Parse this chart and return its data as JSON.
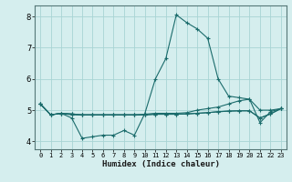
{
  "title": "",
  "xlabel": "Humidex (Indice chaleur)",
  "ylabel": "",
  "bg_color": "#d5eeee",
  "grid_color": "#a8d4d4",
  "line_color": "#1a6b6b",
  "xlim": [
    -0.5,
    23.5
  ],
  "ylim": [
    3.75,
    8.35
  ],
  "xticks": [
    0,
    1,
    2,
    3,
    4,
    5,
    6,
    7,
    8,
    9,
    10,
    11,
    12,
    13,
    14,
    15,
    16,
    17,
    18,
    19,
    20,
    21,
    22,
    23
  ],
  "yticks": [
    4,
    5,
    6,
    7,
    8
  ],
  "series": [
    [
      5.2,
      4.85,
      4.9,
      4.75,
      4.1,
      4.15,
      4.2,
      4.2,
      4.35,
      4.2,
      4.9,
      6.0,
      6.65,
      8.05,
      7.8,
      7.6,
      7.3,
      6.0,
      5.45,
      5.4,
      5.35,
      4.6,
      4.95,
      5.05
    ],
    [
      5.2,
      4.85,
      4.9,
      4.85,
      4.85,
      4.85,
      4.85,
      4.85,
      4.85,
      4.85,
      4.87,
      4.9,
      4.9,
      4.9,
      4.92,
      5.0,
      5.05,
      5.1,
      5.2,
      5.3,
      5.35,
      5.0,
      5.0,
      5.05
    ],
    [
      5.2,
      4.85,
      4.9,
      4.88,
      4.85,
      4.85,
      4.85,
      4.85,
      4.85,
      4.85,
      4.85,
      4.87,
      4.87,
      4.87,
      4.88,
      4.9,
      4.92,
      4.95,
      4.97,
      4.98,
      4.98,
      4.75,
      4.88,
      5.05
    ],
    [
      5.2,
      4.85,
      4.9,
      4.88,
      4.85,
      4.85,
      4.85,
      4.85,
      4.85,
      4.85,
      4.85,
      4.87,
      4.87,
      4.87,
      4.88,
      4.9,
      4.92,
      4.95,
      4.97,
      4.98,
      4.98,
      4.75,
      4.88,
      5.05
    ]
  ],
  "marker": "+",
  "markersize": 3.5,
  "linewidth": 0.8
}
